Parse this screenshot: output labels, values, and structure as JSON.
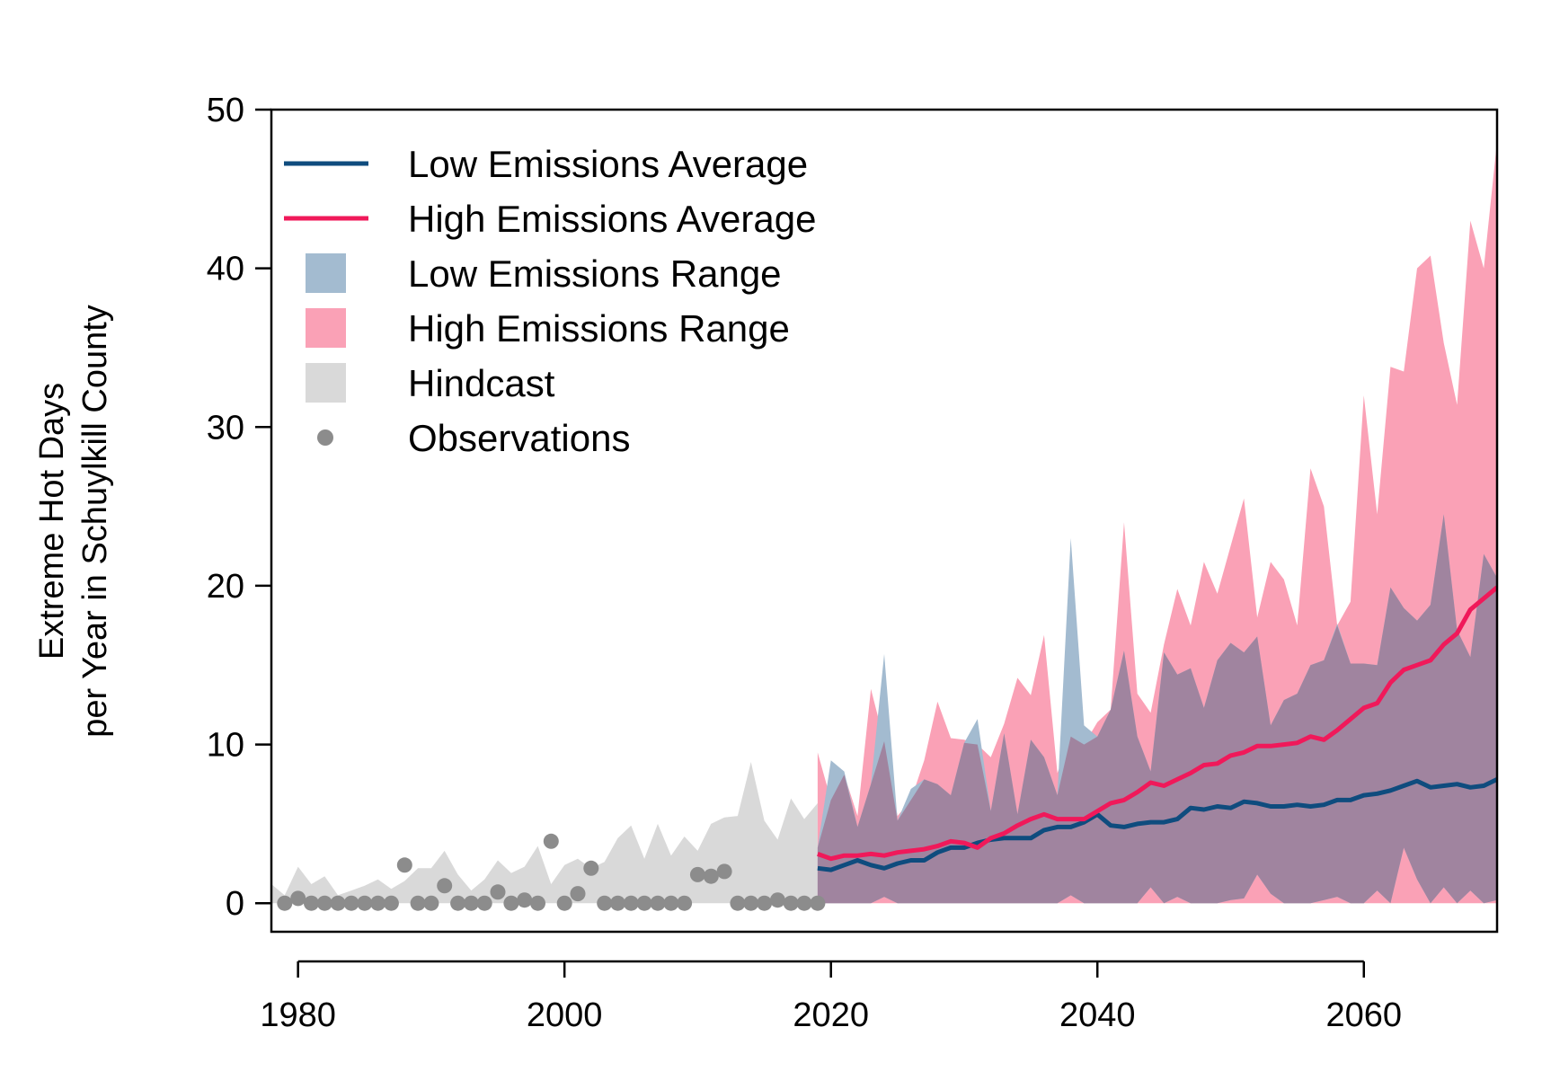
{
  "chart_data": {
    "type": "area",
    "title": "",
    "xlabel": "",
    "ylabel": [
      "Extreme Hot Days",
      "per Year in Schuylkill County"
    ],
    "xlim": [
      1978,
      2070
    ],
    "ylim": [
      -1.8,
      50
    ],
    "xticks": [
      1980,
      2000,
      2020,
      2040,
      2060
    ],
    "yticks": [
      0,
      10,
      20,
      30,
      40,
      50
    ],
    "grid": false,
    "legend_position": "top-left",
    "legend": [
      {
        "label": "Low Emissions Average",
        "symbol": "line",
        "color": "#0f4c7e"
      },
      {
        "label": "High Emissions Average",
        "symbol": "line",
        "color": "#f0195a"
      },
      {
        "label": "Low Emissions Range",
        "symbol": "box",
        "color": "#a3bbd0"
      },
      {
        "label": "High Emissions Range",
        "symbol": "box",
        "color": "#faa1b6"
      },
      {
        "label": "Hindcast",
        "symbol": "box",
        "color": "#d9d9d9"
      },
      {
        "label": "Observations",
        "symbol": "point",
        "color": "#8c8c8c"
      }
    ],
    "colors": {
      "low_avg": "#0f4c7e",
      "high_avg": "#f0195a",
      "low_range": "#a3bbd0",
      "high_range": "#faa1b6",
      "overlap": "#a0849f",
      "hindcast": "#d9d9d9",
      "observations": "#8c8c8c"
    },
    "hindcast": {
      "years": [
        1978,
        1979,
        1980,
        1981,
        1982,
        1983,
        1984,
        1985,
        1986,
        1987,
        1988,
        1989,
        1990,
        1991,
        1992,
        1993,
        1994,
        1995,
        1996,
        1997,
        1998,
        1999,
        2000,
        2001,
        2002,
        2003,
        2004,
        2005,
        2006,
        2007,
        2008,
        2009,
        2010,
        2011,
        2012,
        2013,
        2014,
        2015,
        2016,
        2017,
        2018,
        2019
      ],
      "max": [
        1.2,
        0.5,
        2.3,
        1.2,
        1.7,
        0.5,
        0.8,
        1.1,
        1.5,
        0.9,
        1.4,
        2.2,
        2.2,
        3.3,
        1.8,
        0.8,
        1.5,
        2.7,
        1.9,
        2.3,
        3.6,
        1.2,
        2.4,
        2.8,
        2.2,
        2.6,
        4.1,
        4.9,
        2.8,
        5.0,
        3.0,
        4.2,
        3.3,
        5.0,
        5.4,
        5.5,
        8.9,
        5.2,
        4.0,
        6.6,
        5.3,
        6.3
      ],
      "min": [
        0,
        0,
        0,
        0,
        0,
        0,
        0,
        0,
        0,
        0,
        0,
        0,
        0,
        0,
        0,
        0,
        0,
        0,
        0,
        0,
        0,
        0,
        0,
        0,
        0,
        0,
        0,
        0,
        0,
        0,
        0,
        0,
        0,
        0,
        0,
        0,
        0,
        0,
        0,
        0,
        0,
        0
      ]
    },
    "observations": {
      "years": [
        1979,
        1980,
        1981,
        1982,
        1983,
        1984,
        1985,
        1986,
        1987,
        1988,
        1989,
        1990,
        1991,
        1992,
        1993,
        1994,
        1995,
        1996,
        1997,
        1998,
        1999,
        2000,
        2001,
        2002,
        2003,
        2004,
        2005,
        2006,
        2007,
        2008,
        2009,
        2010,
        2011,
        2012,
        2013,
        2014,
        2015,
        2016,
        2017,
        2018,
        2019
      ],
      "values": [
        0,
        0.3,
        0,
        0,
        0,
        0,
        0,
        0,
        0,
        2.4,
        0,
        0,
        1.1,
        0,
        0,
        0,
        0.7,
        0,
        0.2,
        0,
        3.9,
        0,
        0.6,
        2.2,
        0,
        0,
        0,
        0,
        0,
        0,
        0,
        1.8,
        1.7,
        2.0,
        0,
        0,
        0,
        0.2,
        0,
        0,
        0
      ]
    },
    "projections": {
      "years": [
        2019,
        2020,
        2021,
        2022,
        2023,
        2024,
        2025,
        2026,
        2027,
        2028,
        2029,
        2030,
        2031,
        2032,
        2033,
        2034,
        2035,
        2036,
        2037,
        2038,
        2039,
        2040,
        2041,
        2042,
        2043,
        2044,
        2045,
        2046,
        2047,
        2048,
        2049,
        2050,
        2051,
        2052,
        2053,
        2054,
        2055,
        2056,
        2057,
        2058,
        2059,
        2060,
        2061,
        2062,
        2063,
        2064,
        2065,
        2066,
        2067,
        2068,
        2069,
        2070
      ],
      "series": [
        {
          "name": "High Emissions Range",
          "key": "high_range",
          "max": [
            9.5,
            6.5,
            8.1,
            5.5,
            13.5,
            10.2,
            5.5,
            6.5,
            9.0,
            12.7,
            10.4,
            10.3,
            10.0,
            9.2,
            11.3,
            14.2,
            13.1,
            16.9,
            8.2,
            10.5,
            10.0,
            11.4,
            12.2,
            24.0,
            13.2,
            12.0,
            16.3,
            19.8,
            17.5,
            21.5,
            19.5,
            22.5,
            25.5,
            18.0,
            21.5,
            20.4,
            17.5,
            27.4,
            25.0,
            17.5,
            19.0,
            32.0,
            24.5,
            33.8,
            33.5,
            40.0,
            40.8,
            35.3,
            31.4,
            43.0,
            40.0,
            48.0
          ],
          "min": [
            0,
            0,
            0,
            0,
            0,
            0,
            0,
            0,
            0,
            0,
            0,
            0,
            0,
            0,
            0,
            0,
            0,
            0,
            0,
            0,
            0,
            0,
            0,
            0,
            0,
            0,
            0,
            0,
            0,
            0,
            0,
            0,
            0,
            0,
            0,
            0,
            0,
            0,
            0,
            0,
            0,
            0,
            0,
            0,
            0,
            0,
            0,
            0,
            0,
            0,
            0,
            0
          ]
        },
        {
          "name": "Low Emissions Range",
          "key": "low_range",
          "max": [
            3.5,
            9.0,
            8.3,
            4.8,
            7.5,
            15.7,
            5.2,
            7.2,
            7.8,
            7.5,
            6.8,
            10.1,
            11.6,
            5.8,
            10.7,
            5.6,
            10.3,
            9.2,
            6.8,
            23.0,
            11.2,
            10.5,
            12.2,
            15.9,
            10.5,
            8.3,
            15.8,
            14.4,
            14.8,
            12.3,
            15.3,
            16.4,
            15.8,
            16.8,
            11.2,
            12.8,
            13.2,
            15.0,
            15.3,
            17.6,
            15.1,
            15.1,
            15.0,
            19.9,
            18.6,
            17.8,
            18.8,
            24.5,
            17.2,
            15.5,
            22.0,
            20.5
          ],
          "min": [
            0,
            0,
            0,
            0,
            0,
            0.4,
            0,
            0,
            0,
            0,
            0,
            0,
            0,
            0,
            0,
            0,
            0,
            0,
            0,
            0.5,
            0,
            0,
            0,
            0,
            0,
            1.0,
            0,
            0.4,
            0,
            0,
            0,
            0.2,
            0.3,
            1.8,
            0.6,
            0,
            0,
            0,
            0.2,
            0.4,
            0,
            0,
            0.8,
            0,
            3.5,
            1.5,
            0,
            1.0,
            0,
            0.8,
            0,
            0.2
          ]
        },
        {
          "name": "Low Emissions Average",
          "key": "low_avg",
          "values": [
            2.2,
            2.1,
            2.4,
            2.7,
            2.4,
            2.2,
            2.5,
            2.7,
            2.7,
            3.2,
            3.5,
            3.5,
            3.8,
            4.0,
            4.1,
            4.1,
            4.1,
            4.6,
            4.8,
            4.8,
            5.1,
            5.6,
            4.9,
            4.8,
            5.0,
            5.1,
            5.1,
            5.3,
            6.0,
            5.9,
            6.1,
            6.0,
            6.4,
            6.3,
            6.1,
            6.1,
            6.2,
            6.1,
            6.2,
            6.5,
            6.5,
            6.8,
            6.9,
            7.1,
            7.4,
            7.7,
            7.3,
            7.4,
            7.5,
            7.3,
            7.4,
            7.8
          ]
        },
        {
          "name": "High Emissions Average",
          "key": "high_avg",
          "values": [
            3.1,
            2.8,
            3.0,
            3.0,
            3.1,
            3.0,
            3.2,
            3.3,
            3.4,
            3.6,
            3.9,
            3.8,
            3.5,
            4.1,
            4.4,
            4.9,
            5.3,
            5.6,
            5.3,
            5.3,
            5.3,
            5.8,
            6.3,
            6.5,
            7.0,
            7.6,
            7.4,
            7.8,
            8.2,
            8.7,
            8.8,
            9.3,
            9.5,
            9.9,
            9.9,
            10.0,
            10.1,
            10.5,
            10.3,
            10.9,
            11.6,
            12.3,
            12.6,
            13.9,
            14.7,
            15.0,
            15.3,
            16.3,
            17.0,
            18.5,
            19.2,
            19.9
          ]
        }
      ]
    }
  }
}
